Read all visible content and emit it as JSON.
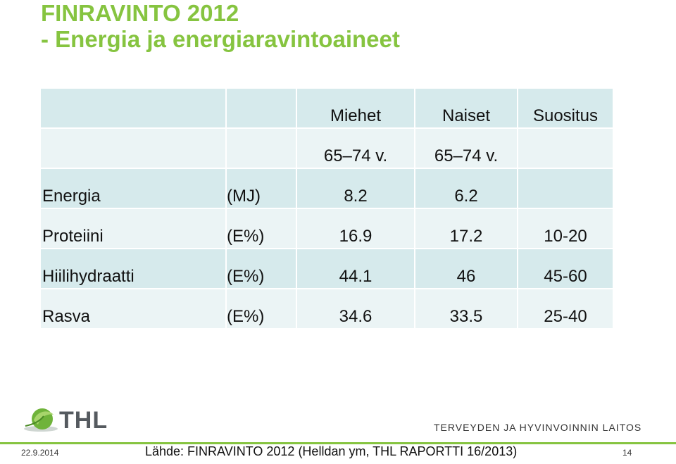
{
  "slide": {
    "title_line1": "FINRAVINTO 2012",
    "title_line2": "- Energia ja energiaravintoaineet"
  },
  "table": {
    "headers": [
      "",
      "",
      "Miehet",
      "Naiset",
      "Suositus"
    ],
    "age_row": [
      "",
      "",
      "65–74 v.",
      "65–74 v.",
      ""
    ],
    "rows": [
      {
        "name": "Energia",
        "unit": "(MJ)",
        "men": "8.2",
        "women": "6.2",
        "rec": ""
      },
      {
        "name": "Proteiini",
        "unit": "(E%)",
        "men": "16.9",
        "women": "17.2",
        "rec": "10-20"
      },
      {
        "name": "Hiilihydraatti",
        "unit": "(E%)",
        "men": "44.1",
        "women": "46",
        "rec": "45-60"
      },
      {
        "name": "Rasva",
        "unit": "(E%)",
        "men": "34.6",
        "women": "33.5",
        "rec": "25-40"
      }
    ]
  },
  "logo": {
    "abbr": "THL",
    "org_name": "TERVEYDEN JA HYVINVOINNIN LAITOS"
  },
  "footer": {
    "date": "22.9.2014",
    "source": "Lähde: FINRAVINTO 2012 (Helldan ym, THL RAPORTTI 16/2013)",
    "page": "14"
  },
  "colors": {
    "accent": "#86c440",
    "cell_dark": "#d6eaec",
    "cell_light": "#ebf4f5"
  }
}
